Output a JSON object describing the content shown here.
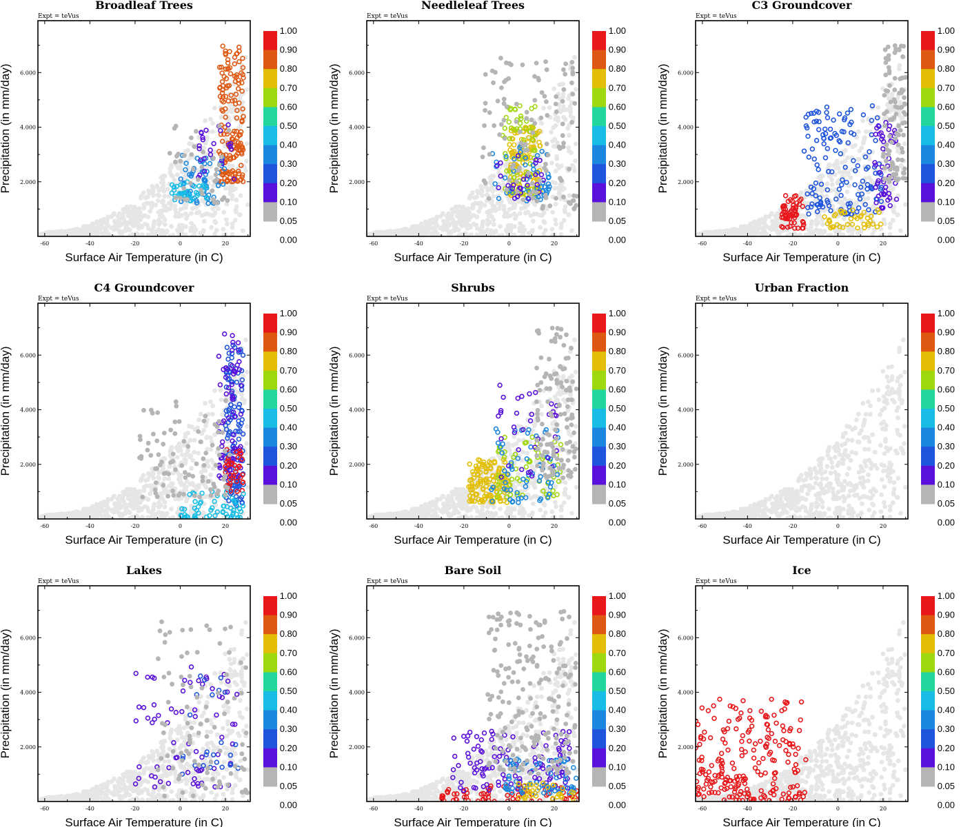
{
  "common": {
    "expt_label": "Expt = teVus",
    "xlabel": "Surface Air Temperature (in C)",
    "ylabel": "Precipitation (in mm/day)",
    "xticks": [
      "-60",
      "-40",
      "-20",
      "0",
      "20"
    ],
    "yticks": [
      "2.000",
      "4.000",
      "6.000"
    ],
    "colorbar_labels": [
      "1.00",
      "0.90",
      "0.80",
      "0.70",
      "0.60",
      "0.50",
      "0.40",
      "0.30",
      "0.20",
      "0.10",
      "0.05",
      "0.00"
    ],
    "colorbar_colors": [
      "#e8171a",
      "#df5812",
      "#e2bf06",
      "#9fd70e",
      "#22d79e",
      "#18bde6",
      "#1b87df",
      "#1f54dd",
      "#5a11dc",
      "#b5b5b5"
    ],
    "background_point_color": "#e6e6e6"
  },
  "chart_data": [
    {
      "type": "scatter",
      "title": "Broadleaf Trees",
      "xlim": [
        -63,
        31
      ],
      "ylim": [
        0,
        7.9
      ],
      "clusters": [
        {
          "class_color": "#df5812",
          "x_range": [
            17,
            28
          ],
          "y_range": [
            2.0,
            7.0
          ],
          "count": 160
        },
        {
          "class_color": "#1b87df",
          "x_range": [
            0,
            20
          ],
          "y_range": [
            1.2,
            3.0
          ],
          "count": 60
        },
        {
          "class_color": "#18bde6",
          "x_range": [
            -4,
            12
          ],
          "y_range": [
            1.3,
            2.0
          ],
          "count": 40
        },
        {
          "class_color": "#5a11dc",
          "x_range": [
            8,
            24
          ],
          "y_range": [
            2.0,
            4.2
          ],
          "count": 25
        },
        {
          "class_color": "#b5b5b5",
          "x_range": [
            -5,
            22
          ],
          "y_range": [
            1.2,
            4.6
          ],
          "count": 40
        }
      ]
    },
    {
      "type": "scatter",
      "title": "Needleleaf Trees",
      "xlim": [
        -63,
        31
      ],
      "ylim": [
        0,
        7.9
      ],
      "clusters": [
        {
          "class_color": "#e2bf06",
          "x_range": [
            0,
            14
          ],
          "y_range": [
            1.5,
            4.0
          ],
          "count": 120
        },
        {
          "class_color": "#9fd70e",
          "x_range": [
            -3,
            12
          ],
          "y_range": [
            1.5,
            4.8
          ],
          "count": 60
        },
        {
          "class_color": "#1b87df",
          "x_range": [
            -8,
            18
          ],
          "y_range": [
            1.3,
            3.4
          ],
          "count": 50
        },
        {
          "class_color": "#5a11dc",
          "x_range": [
            -6,
            16
          ],
          "y_range": [
            1.3,
            3.0
          ],
          "count": 25
        },
        {
          "class_color": "#b5b5b5",
          "x_range": [
            -12,
            30
          ],
          "y_range": [
            1.0,
            6.6
          ],
          "count": 120
        }
      ]
    },
    {
      "type": "scatter",
      "title": "C3 Groundcover",
      "xlim": [
        -63,
        31
      ],
      "ylim": [
        0,
        7.9
      ],
      "clusters": [
        {
          "class_color": "#e8171a",
          "x_range": [
            -25,
            -15
          ],
          "y_range": [
            0.3,
            1.5
          ],
          "count": 60
        },
        {
          "class_color": "#1f54dd",
          "x_range": [
            -15,
            20
          ],
          "y_range": [
            0.8,
            4.8
          ],
          "count": 140
        },
        {
          "class_color": "#5a11dc",
          "x_range": [
            16,
            26
          ],
          "y_range": [
            1.0,
            4.2
          ],
          "count": 50
        },
        {
          "class_color": "#e2bf06",
          "x_range": [
            -6,
            20
          ],
          "y_range": [
            0.3,
            1.0
          ],
          "count": 40
        },
        {
          "class_color": "#b5b5b5",
          "x_range": [
            20,
            30
          ],
          "y_range": [
            2.0,
            7.0
          ],
          "count": 100
        }
      ]
    },
    {
      "type": "scatter",
      "title": "C4 Groundcover",
      "xlim": [
        -63,
        31
      ],
      "ylim": [
        0,
        7.9
      ],
      "clusters": [
        {
          "class_color": "#1f54dd",
          "x_range": [
            20,
            28
          ],
          "y_range": [
            0.5,
            6.5
          ],
          "count": 130
        },
        {
          "class_color": "#5a11dc",
          "x_range": [
            17,
            27
          ],
          "y_range": [
            1.5,
            6.8
          ],
          "count": 70
        },
        {
          "class_color": "#e8171a",
          "x_range": [
            20,
            28
          ],
          "y_range": [
            1.0,
            2.6
          ],
          "count": 40
        },
        {
          "class_color": "#18bde6",
          "x_range": [
            0,
            28
          ],
          "y_range": [
            0.0,
            1.0
          ],
          "count": 60
        },
        {
          "class_color": "#b5b5b5",
          "x_range": [
            -18,
            22
          ],
          "y_range": [
            0.8,
            4.4
          ],
          "count": 90
        }
      ]
    },
    {
      "type": "scatter",
      "title": "Shrubs",
      "xlim": [
        -63,
        31
      ],
      "ylim": [
        0,
        7.9
      ],
      "clusters": [
        {
          "class_color": "#e2bf06",
          "x_range": [
            -18,
            0
          ],
          "y_range": [
            0.6,
            2.2
          ],
          "count": 130
        },
        {
          "class_color": "#9fd70e",
          "x_range": [
            -6,
            24
          ],
          "y_range": [
            0.8,
            3.0
          ],
          "count": 60
        },
        {
          "class_color": "#1b87df",
          "x_range": [
            -8,
            22
          ],
          "y_range": [
            0.6,
            3.4
          ],
          "count": 60
        },
        {
          "class_color": "#5a11dc",
          "x_range": [
            -5,
            22
          ],
          "y_range": [
            1.5,
            4.9
          ],
          "count": 35
        },
        {
          "class_color": "#b5b5b5",
          "x_range": [
            12,
            30
          ],
          "y_range": [
            1.5,
            7.0
          ],
          "count": 120
        }
      ]
    },
    {
      "type": "scatter",
      "title": "Urban Fraction",
      "xlim": [
        -63,
        31
      ],
      "ylim": [
        0,
        7.9
      ],
      "clusters": []
    },
    {
      "type": "scatter",
      "title": "Lakes",
      "xlim": [
        -63,
        31
      ],
      "ylim": [
        0,
        7.9
      ],
      "clusters": [
        {
          "class_color": "#5a11dc",
          "x_range": [
            -20,
            26
          ],
          "y_range": [
            0.5,
            5.0
          ],
          "count": 70
        },
        {
          "class_color": "#1f54dd",
          "x_range": [
            0,
            26
          ],
          "y_range": [
            1.0,
            4.6
          ],
          "count": 25
        },
        {
          "class_color": "#b5b5b5",
          "x_range": [
            -10,
            30
          ],
          "y_range": [
            0.2,
            6.6
          ],
          "count": 90
        }
      ]
    },
    {
      "type": "scatter",
      "title": "Bare Soil",
      "xlim": [
        -63,
        31
      ],
      "ylim": [
        0,
        7.9
      ],
      "clusters": [
        {
          "class_color": "#e8171a",
          "x_range": [
            -30,
            31
          ],
          "y_range": [
            0.0,
            0.6
          ],
          "count": 70
        },
        {
          "class_color": "#5a11dc",
          "x_range": [
            -26,
            28
          ],
          "y_range": [
            0.4,
            2.6
          ],
          "count": 120
        },
        {
          "class_color": "#1b87df",
          "x_range": [
            -2,
            30
          ],
          "y_range": [
            0.3,
            1.6
          ],
          "count": 70
        },
        {
          "class_color": "#e2bf06",
          "x_range": [
            4,
            30
          ],
          "y_range": [
            0.1,
            0.7
          ],
          "count": 30
        },
        {
          "class_color": "#b5b5b5",
          "x_range": [
            -10,
            30
          ],
          "y_range": [
            1.0,
            7.0
          ],
          "count": 200
        }
      ]
    },
    {
      "type": "scatter",
      "title": "Ice",
      "xlim": [
        -63,
        31
      ],
      "ylim": [
        0,
        7.9
      ],
      "clusters": [
        {
          "class_color": "#e8171a",
          "x_range": [
            -63,
            -14
          ],
          "y_range": [
            0.0,
            3.8
          ],
          "count": 220
        }
      ]
    }
  ]
}
